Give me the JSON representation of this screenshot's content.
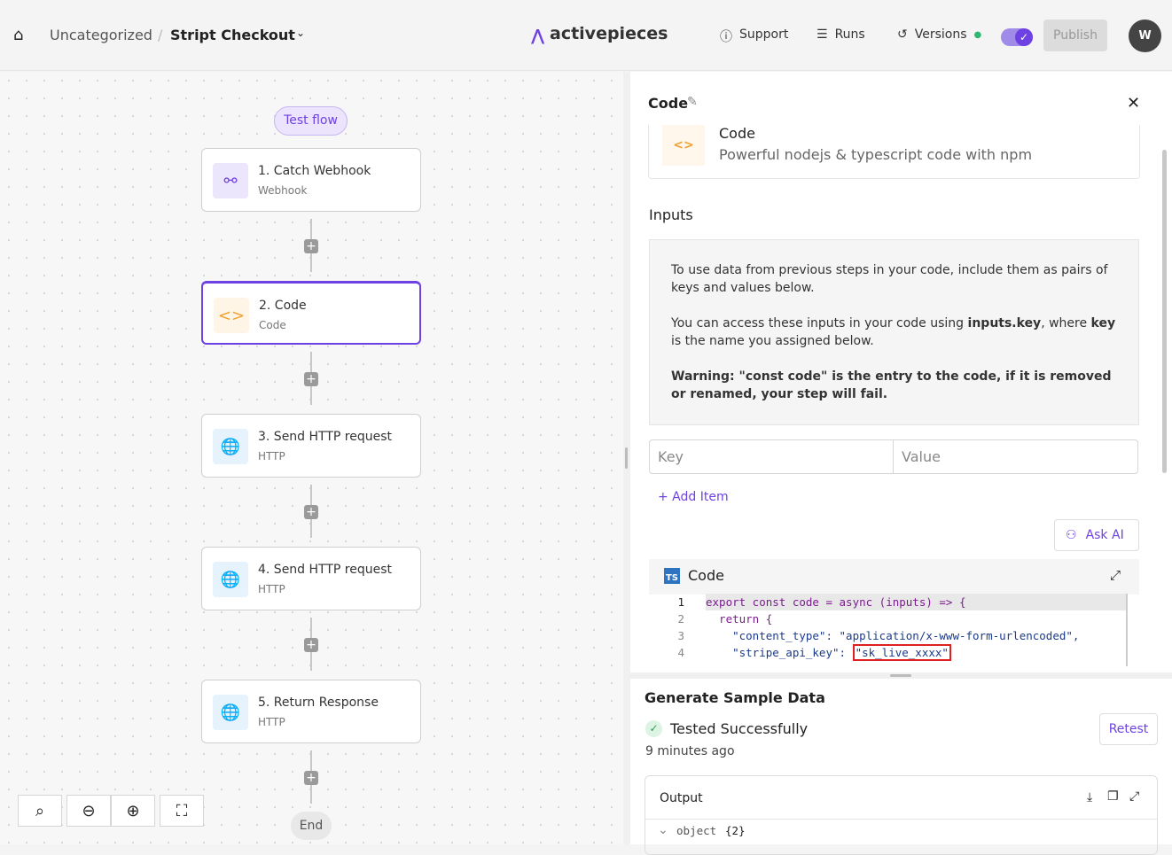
{
  "header": {
    "breadcrumb_folder": "Uncategorized",
    "breadcrumb_sep": "/",
    "flow_name": "Stript Checkout",
    "brand": "activepieces",
    "support": "Support",
    "runs": "Runs",
    "versions": "Versions",
    "publish": "Publish",
    "avatar": "W",
    "accent": "#6e41e2"
  },
  "canvas": {
    "test_flow": "Test flow",
    "end": "End",
    "nodes": [
      {
        "title": "1. Catch Webhook",
        "subtitle": "Webhook",
        "icon": "webhook-icon"
      },
      {
        "title": "2. Code",
        "subtitle": "Code",
        "icon": "code-icon"
      },
      {
        "title": "3. Send HTTP request",
        "subtitle": "HTTP",
        "icon": "globe-icon"
      },
      {
        "title": "4. Send HTTP request",
        "subtitle": "HTTP",
        "icon": "globe-icon"
      },
      {
        "title": "5. Return Response",
        "subtitle": "HTTP",
        "icon": "globe-icon"
      }
    ]
  },
  "panel": {
    "title": "Code",
    "piece_name": "Code",
    "piece_desc": "Powerful nodejs & typescript code with npm",
    "inputs_label": "Inputs",
    "info_p1": "To use data from previous steps in your code, include them as pairs of keys and values below.",
    "info_p2a": "You can access these inputs in your code using ",
    "info_p2b": "inputs.key",
    "info_p2c": ", where ",
    "info_p2d": "key",
    "info_p2e": " is the name you assigned below.",
    "info_p3a": "Warning: ",
    "info_p3b": "\"const code\" is the entry to the code, if it is removed or renamed, your step will fail.",
    "key_placeholder": "Key",
    "value_placeholder": "Value",
    "add_item": "+ Add Item",
    "ask_ai": "Ask AI",
    "editor_title": "Code",
    "ts_badge": "TS",
    "code_lines": [
      {
        "n": "1",
        "text": "export const code = async (inputs) => {"
      },
      {
        "n": "2",
        "text": "  return {"
      },
      {
        "n": "3",
        "text": "    \"content_type\": \"application/x-www-form-urlencoded\","
      },
      {
        "n": "4a",
        "text": "    \"stripe_api_key\": "
      },
      {
        "n": "4b",
        "text": "\"sk_live_xxxx\""
      }
    ]
  },
  "sample": {
    "title": "Generate Sample Data",
    "status": "Tested Successfully",
    "time": "9 minutes ago",
    "retest": "Retest",
    "output": "Output",
    "object": "object",
    "object_count": "{2}"
  }
}
